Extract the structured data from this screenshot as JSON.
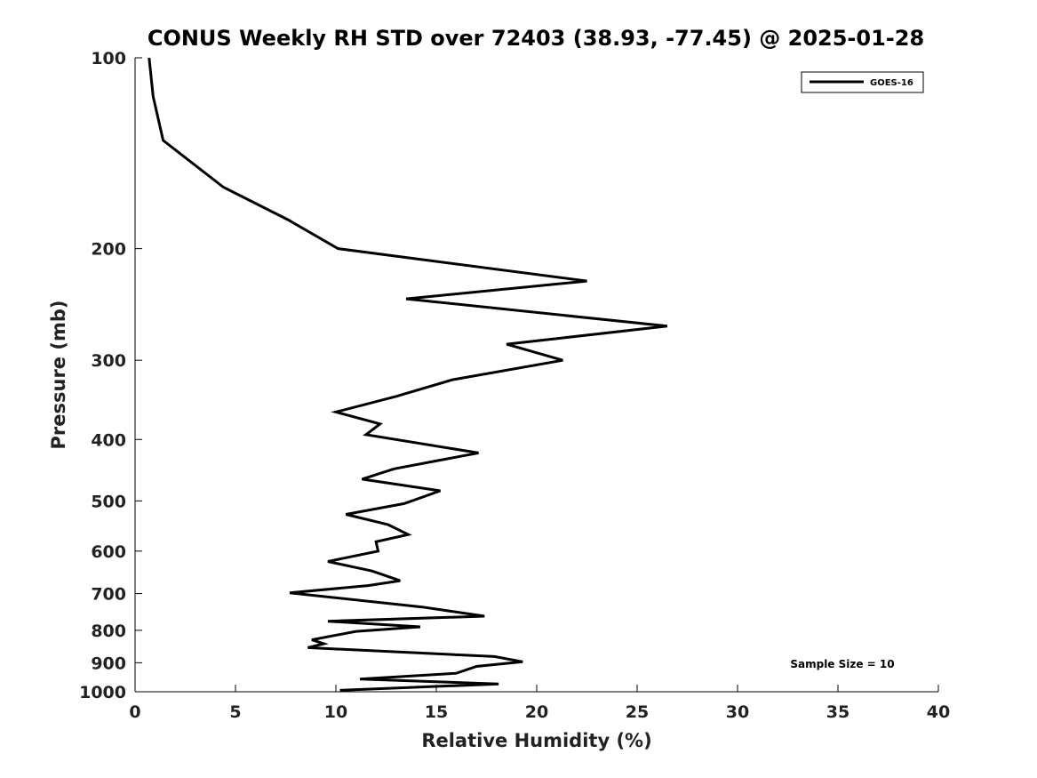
{
  "chart_data": {
    "type": "line",
    "title": "CONUS Weekly RH STD over 72403 (38.93, -77.45) @ 2025-01-28",
    "xlabel": "Relative Humidity (%)",
    "ylabel": "Pressure (mb)",
    "xlim": [
      0,
      40
    ],
    "ylim": [
      100,
      1000
    ],
    "y_scale": "log",
    "y_reversed": true,
    "x_ticks": [
      "0",
      "5",
      "10",
      "15",
      "20",
      "25",
      "30",
      "35",
      "40"
    ],
    "y_ticks": [
      "100",
      "200",
      "300",
      "400",
      "500",
      "600",
      "700",
      "800",
      "900",
      "1000"
    ],
    "grid": false,
    "legend_position": "top-right",
    "annotation": "Sample Size = 10",
    "series": [
      {
        "name": "GOES-16",
        "color": "#000000",
        "points": [
          [
            0.7,
            100
          ],
          [
            0.9,
            115
          ],
          [
            1.4,
            135
          ],
          [
            4.4,
            160
          ],
          [
            7.6,
            180
          ],
          [
            10.1,
            200
          ],
          [
            22.5,
            225
          ],
          [
            13.5,
            240
          ],
          [
            26.5,
            265
          ],
          [
            18.5,
            283
          ],
          [
            21.3,
            300
          ],
          [
            15.8,
            322
          ],
          [
            13.0,
            342
          ],
          [
            10.0,
            362
          ],
          [
            12.2,
            378
          ],
          [
            11.5,
            393
          ],
          [
            17.1,
            420
          ],
          [
            12.9,
            445
          ],
          [
            11.3,
            462
          ],
          [
            15.2,
            482
          ],
          [
            13.4,
            505
          ],
          [
            10.5,
            525
          ],
          [
            12.6,
            545
          ],
          [
            13.6,
            565
          ],
          [
            12.0,
            580
          ],
          [
            12.1,
            600
          ],
          [
            9.6,
            623
          ],
          [
            11.8,
            645
          ],
          [
            13.2,
            668
          ],
          [
            11.6,
            680
          ],
          [
            7.7,
            698
          ],
          [
            14.3,
            735
          ],
          [
            17.4,
            760
          ],
          [
            9.6,
            774
          ],
          [
            14.2,
            790
          ],
          [
            11.0,
            803
          ],
          [
            8.8,
            828
          ],
          [
            9.4,
            840
          ],
          [
            8.6,
            852
          ],
          [
            17.9,
            880
          ],
          [
            19.3,
            897
          ],
          [
            17.0,
            912
          ],
          [
            16.0,
            935
          ],
          [
            11.2,
            955
          ],
          [
            18.1,
            972
          ],
          [
            10.2,
            995
          ]
        ]
      }
    ]
  }
}
